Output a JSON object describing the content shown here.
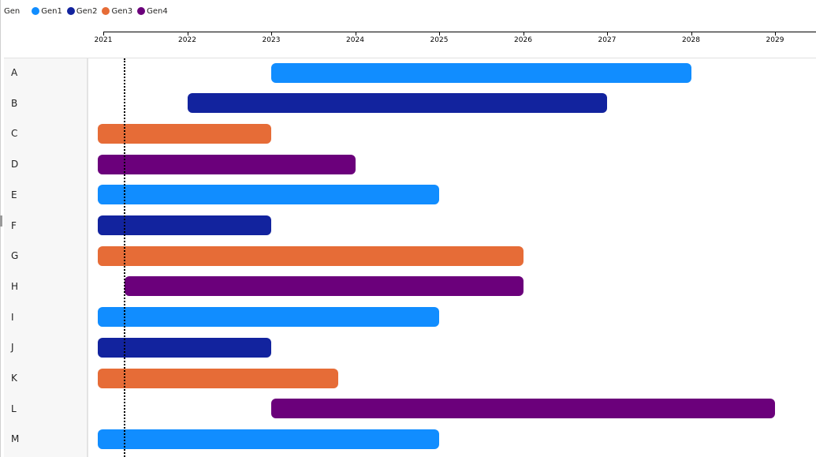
{
  "legend": {
    "title": "Gen",
    "items": [
      {
        "label": "Gen1",
        "color": "#118DFF"
      },
      {
        "label": "Gen2",
        "color": "#12239E"
      },
      {
        "label": "Gen3",
        "color": "#E66C37"
      },
      {
        "label": "Gen4",
        "color": "#6B007B"
      }
    ]
  },
  "axis": {
    "ticks": [
      "2021",
      "2022",
      "2023",
      "2024",
      "2025",
      "2026",
      "2027",
      "2028",
      "2029"
    ]
  },
  "chart_data": {
    "type": "bar",
    "subtype": "gantt",
    "title": "",
    "xlabel": "",
    "ylabel": "",
    "legend_title": "Gen",
    "legend_position": "top-left",
    "x_range": [
      2020.93,
      2029.5
    ],
    "x_ticks": [
      2021,
      2022,
      2023,
      2024,
      2025,
      2026,
      2027,
      2028,
      2029
    ],
    "categories": [
      "A",
      "B",
      "C",
      "D",
      "E",
      "F",
      "G",
      "H",
      "I",
      "J",
      "K",
      "L",
      "M"
    ],
    "tasks": [
      {
        "name": "A",
        "start": 2023.0,
        "end": 2028.0,
        "gen": "Gen1"
      },
      {
        "name": "B",
        "start": 2022.0,
        "end": 2027.0,
        "gen": "Gen2"
      },
      {
        "name": "C",
        "start": 2021.0,
        "end": 2023.0,
        "gen": "Gen3"
      },
      {
        "name": "D",
        "start": 2021.0,
        "end": 2024.0,
        "gen": "Gen4"
      },
      {
        "name": "E",
        "start": 2021.0,
        "end": 2025.0,
        "gen": "Gen1"
      },
      {
        "name": "F",
        "start": 2021.0,
        "end": 2023.0,
        "gen": "Gen2"
      },
      {
        "name": "G",
        "start": 2021.0,
        "end": 2026.0,
        "gen": "Gen3"
      },
      {
        "name": "H",
        "start": 2021.25,
        "end": 2026.0,
        "gen": "Gen4"
      },
      {
        "name": "I",
        "start": 2021.0,
        "end": 2025.0,
        "gen": "Gen1"
      },
      {
        "name": "J",
        "start": 2021.0,
        "end": 2023.0,
        "gen": "Gen2"
      },
      {
        "name": "K",
        "start": 2021.0,
        "end": 2023.8,
        "gen": "Gen3"
      },
      {
        "name": "L",
        "start": 2023.0,
        "end": 2029.0,
        "gen": "Gen4"
      },
      {
        "name": "M",
        "start": 2021.0,
        "end": 2025.0,
        "gen": "Gen1"
      }
    ],
    "reference_line": {
      "x": 2021.25,
      "style": "dotted"
    }
  }
}
